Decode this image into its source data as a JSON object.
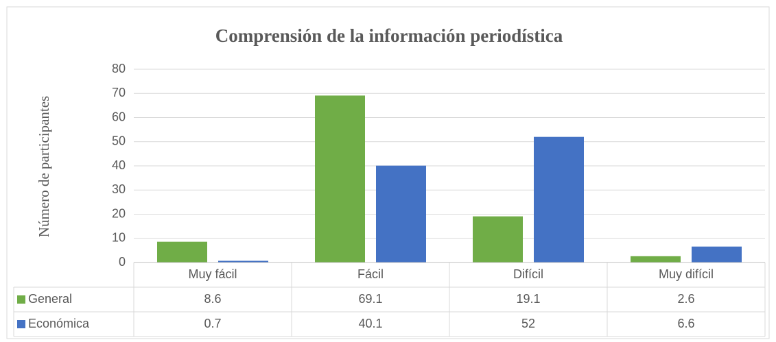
{
  "chart_data": {
    "type": "bar",
    "title": "Comprensión de la información periodística",
    "y_label": "Número de participantes",
    "categories": [
      "Muy fácil",
      "Fácil",
      "Difícil",
      "Muy difícil"
    ],
    "series": [
      {
        "name": "General",
        "color": "#70ad47",
        "values": [
          8.6,
          69.1,
          19.1,
          2.6
        ]
      },
      {
        "name": "Económica",
        "color": "#4472c4",
        "values": [
          0.7,
          40.1,
          52,
          6.6
        ]
      }
    ],
    "ylim": [
      0,
      80
    ],
    "yticks": [
      0,
      10,
      20,
      30,
      40,
      50,
      60,
      70,
      80
    ],
    "grid": true,
    "legend": "data-table"
  }
}
